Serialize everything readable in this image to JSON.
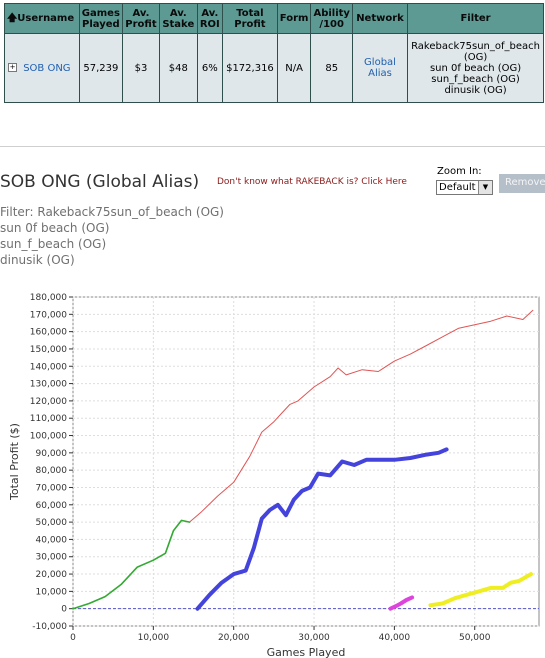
{
  "table": {
    "headers": [
      "Username",
      "Games Played",
      "Av. Profit",
      "Av. Stake",
      "Av. ROI",
      "Total Profit",
      "Form",
      "Ability /100",
      "Network",
      "Filter"
    ],
    "row": {
      "username": "SOB ONG",
      "games_played": "57,239",
      "av_profit": "$3",
      "av_stake": "$48",
      "av_roi": "6%",
      "total_profit": "$172,316",
      "form": "N/A",
      "ability": "85",
      "network": "Global Alias",
      "filter_lines": [
        "Rakeback75sun_of_beach (OG)",
        "sun 0f beach (OG)",
        "sun_f_beach (OG)",
        "dinusik (OG)"
      ]
    }
  },
  "page_title": "SOB ONG (Global Alias)",
  "rakeback_link": "Don't know what RAKEBACK is? Click Here",
  "zoom": {
    "label": "Zoom In:",
    "selected": "Default"
  },
  "remove_button": "Remove",
  "filter": {
    "lines": [
      "Filter: Rakeback75sun_of_beach (OG)",
      "sun 0f beach (OG)",
      "sun_f_beach (OG)",
      "dinusik (OG)"
    ]
  },
  "chart_data": {
    "type": "line",
    "xlabel": "Games Played",
    "ylabel": "Total Profit ($)",
    "xlim": [
      0,
      58000
    ],
    "ylim": [
      -10000,
      180000
    ],
    "x_ticks": [
      0,
      10000,
      20000,
      30000,
      40000,
      50000
    ],
    "x_tick_labels": [
      "0",
      "10,000",
      "20,000",
      "30,000",
      "40,000",
      "50,000"
    ],
    "y_ticks": [
      -10000,
      0,
      10000,
      20000,
      30000,
      40000,
      50000,
      60000,
      70000,
      80000,
      90000,
      100000,
      110000,
      120000,
      130000,
      140000,
      150000,
      160000,
      170000,
      180000
    ],
    "y_tick_labels": [
      "-10,000",
      "0",
      "10,000",
      "20,000",
      "30,000",
      "40,000",
      "50,000",
      "60,000",
      "70,000",
      "80,000",
      "90,000",
      "100,000",
      "110,000",
      "120,000",
      "130,000",
      "140,000",
      "150,000",
      "160,000",
      "170,000",
      "180,000"
    ],
    "grid": true,
    "series": [
      {
        "color": "#e05555",
        "x": [
          0,
          2000,
          4000,
          6000,
          8000,
          10000,
          11500,
          12500,
          13500,
          14500,
          16000,
          18000,
          20000,
          22000,
          23500,
          25000,
          26000,
          27000,
          28000,
          30000,
          32000,
          33000,
          34000,
          36000,
          38000,
          40000,
          42000,
          44000,
          46000,
          48000,
          50000,
          52000,
          54000,
          56000,
          57239
        ],
        "values": [
          0,
          3000,
          7000,
          14000,
          24000,
          28000,
          32000,
          45000,
          51000,
          50000,
          56000,
          65000,
          73000,
          88000,
          102000,
          108000,
          113000,
          118000,
          120000,
          128000,
          134000,
          139000,
          135000,
          138000,
          137000,
          143000,
          147000,
          152000,
          157000,
          162000,
          164000,
          166000,
          169000,
          167000,
          172316
        ]
      },
      {
        "color": "#33aa33",
        "x": [
          0,
          2000,
          4000,
          6000,
          8000,
          10000,
          11500,
          12500,
          13500,
          14500
        ],
        "values": [
          0,
          3000,
          7000,
          14000,
          24000,
          28000,
          32000,
          45000,
          51000,
          50000
        ]
      },
      {
        "color": "#4444dd",
        "x": [
          15500,
          17000,
          18500,
          20000,
          21500,
          22500,
          23500,
          24500,
          25500,
          26500,
          27500,
          28500,
          29500,
          30500,
          32000,
          33500,
          35000,
          36500,
          38000,
          40000,
          42000,
          44000,
          45500,
          46500
        ],
        "values": [
          0,
          8000,
          15000,
          20000,
          22000,
          35000,
          52000,
          57000,
          60000,
          54000,
          63000,
          68000,
          70000,
          78000,
          77000,
          85000,
          83000,
          86000,
          86000,
          86000,
          87000,
          89000,
          90000,
          92000
        ]
      },
      {
        "color": "#dd44dd",
        "x": [
          39500,
          40200,
          40800,
          41500,
          42200
        ],
        "values": [
          0,
          1500,
          3000,
          5000,
          6500
        ]
      },
      {
        "color": "#eeee22",
        "x": [
          44500,
          46000,
          47500,
          49000,
          50500,
          52000,
          53500,
          54500,
          55500,
          57000
        ],
        "values": [
          2000,
          3000,
          6000,
          8000,
          10000,
          12000,
          12000,
          15000,
          16000,
          20000
        ]
      }
    ]
  }
}
